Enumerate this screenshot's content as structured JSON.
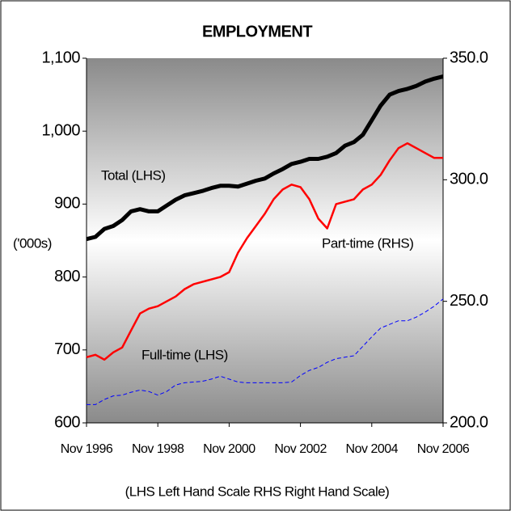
{
  "chart_data": {
    "type": "line",
    "title": "EMPLOYMENT",
    "y_label": "('000s)",
    "footnote": "(LHS Left Hand Scale    RHS Right Hand Scale)",
    "annotations": [
      "Total (LHS)",
      "Part-time (RHS)",
      "Full-time (LHS)"
    ],
    "categories": [
      "Nov 1996",
      null,
      null,
      null,
      null,
      null,
      null,
      null,
      "Nov 1998",
      null,
      null,
      null,
      null,
      null,
      null,
      null,
      "Nov 2000",
      null,
      null,
      null,
      null,
      null,
      null,
      null,
      "Nov 2002",
      null,
      null,
      null,
      null,
      null,
      null,
      null,
      "Nov 2004",
      null,
      null,
      null,
      null,
      null,
      null,
      null,
      "Nov 2006"
    ],
    "series": [
      {
        "name": "Total",
        "color": "#000000",
        "axis": "y",
        "line_style": "solid",
        "values": [
          852,
          855,
          866,
          870,
          878,
          890,
          893,
          890,
          890,
          898,
          906,
          912,
          915,
          918,
          922,
          925,
          925,
          924,
          928,
          932,
          935,
          942,
          948,
          955,
          958,
          962,
          962,
          965,
          970,
          980,
          985,
          995,
          1015,
          1035,
          1050,
          1055,
          1058,
          1062,
          1068,
          1072,
          1075
        ]
      },
      {
        "name": "Part-time",
        "color": "#ff0000",
        "axis": "y2",
        "line_style": "solid",
        "values": [
          227,
          228,
          226,
          229,
          231,
          238,
          245,
          247,
          248,
          250,
          252,
          255,
          257,
          258,
          259,
          260,
          262,
          270,
          276,
          281,
          286,
          292,
          296,
          298,
          297,
          292,
          284,
          280,
          290,
          291,
          292,
          296,
          298,
          302,
          308,
          313,
          315,
          313,
          311,
          309,
          309
        ]
      },
      {
        "name": "Full-time",
        "color": "#0000ff",
        "axis": "y",
        "line_style": "dashed",
        "values": [
          625,
          625,
          632,
          637,
          638,
          642,
          645,
          643,
          638,
          643,
          652,
          655,
          656,
          657,
          660,
          664,
          660,
          656,
          655,
          655,
          655,
          655,
          655,
          656,
          665,
          672,
          676,
          683,
          688,
          690,
          692,
          705,
          718,
          730,
          735,
          740,
          740,
          745,
          752,
          760,
          770
        ]
      }
    ],
    "ylim": [
      600,
      1100
    ],
    "yticks": [
      600,
      700,
      800,
      900,
      {
        "value": 1000,
        "label": "1,000"
      },
      {
        "value": 1100,
        "label": "1,100"
      }
    ],
    "y2lim": [
      200,
      350
    ],
    "y2ticks": [
      {
        "value": 200,
        "label": "200.0"
      },
      {
        "value": 250,
        "label": "250.0"
      },
      {
        "value": 300,
        "label": "300.0"
      },
      {
        "value": 350,
        "label": "350.0"
      }
    ]
  }
}
